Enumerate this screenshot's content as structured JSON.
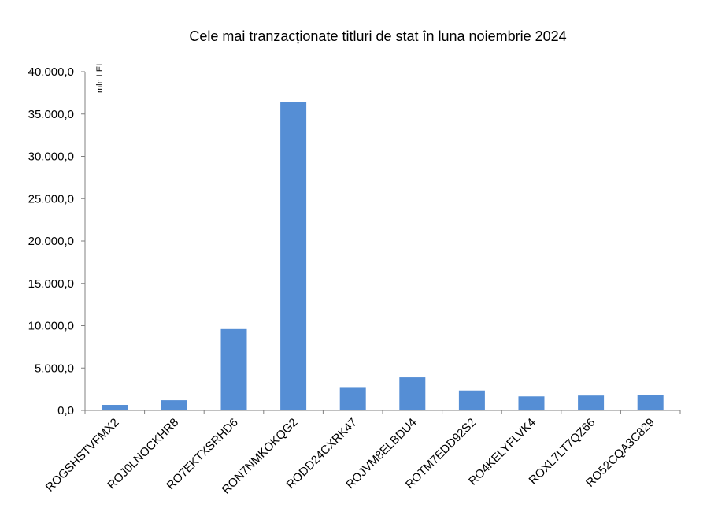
{
  "chart_data": {
    "type": "bar",
    "title": "Cele mai tranzacționate titluri de stat în luna noiembrie 2024",
    "unit_label": "mln LEI",
    "categories": [
      "ROGSHSTVFMX2",
      "ROJ0LNOCKHR8",
      "RO7EKTXSRHD6",
      "RON7NMKOKQG2",
      "RODD24CXRK47",
      "ROJVM8ELBDU4",
      "ROTM7EDD92S2",
      "RO4KELYFLVK4",
      "ROXL7LT7QZ66",
      "RO52CQA3C829"
    ],
    "values": [
      650,
      1200,
      9600,
      36400,
      2750,
      3900,
      2350,
      1650,
      1750,
      1800
    ],
    "ylim": [
      0,
      40000
    ],
    "yticks": [
      0,
      5000,
      10000,
      15000,
      20000,
      25000,
      30000,
      35000,
      40000
    ],
    "ytick_labels": [
      "0,0",
      "5.000,0",
      "10.000,0",
      "15.000,0",
      "20.000,0",
      "25.000,0",
      "30.000,0",
      "35.000,0",
      "40.000,0"
    ],
    "bar_color": "#558ED5",
    "grid": false,
    "legend": "none"
  }
}
